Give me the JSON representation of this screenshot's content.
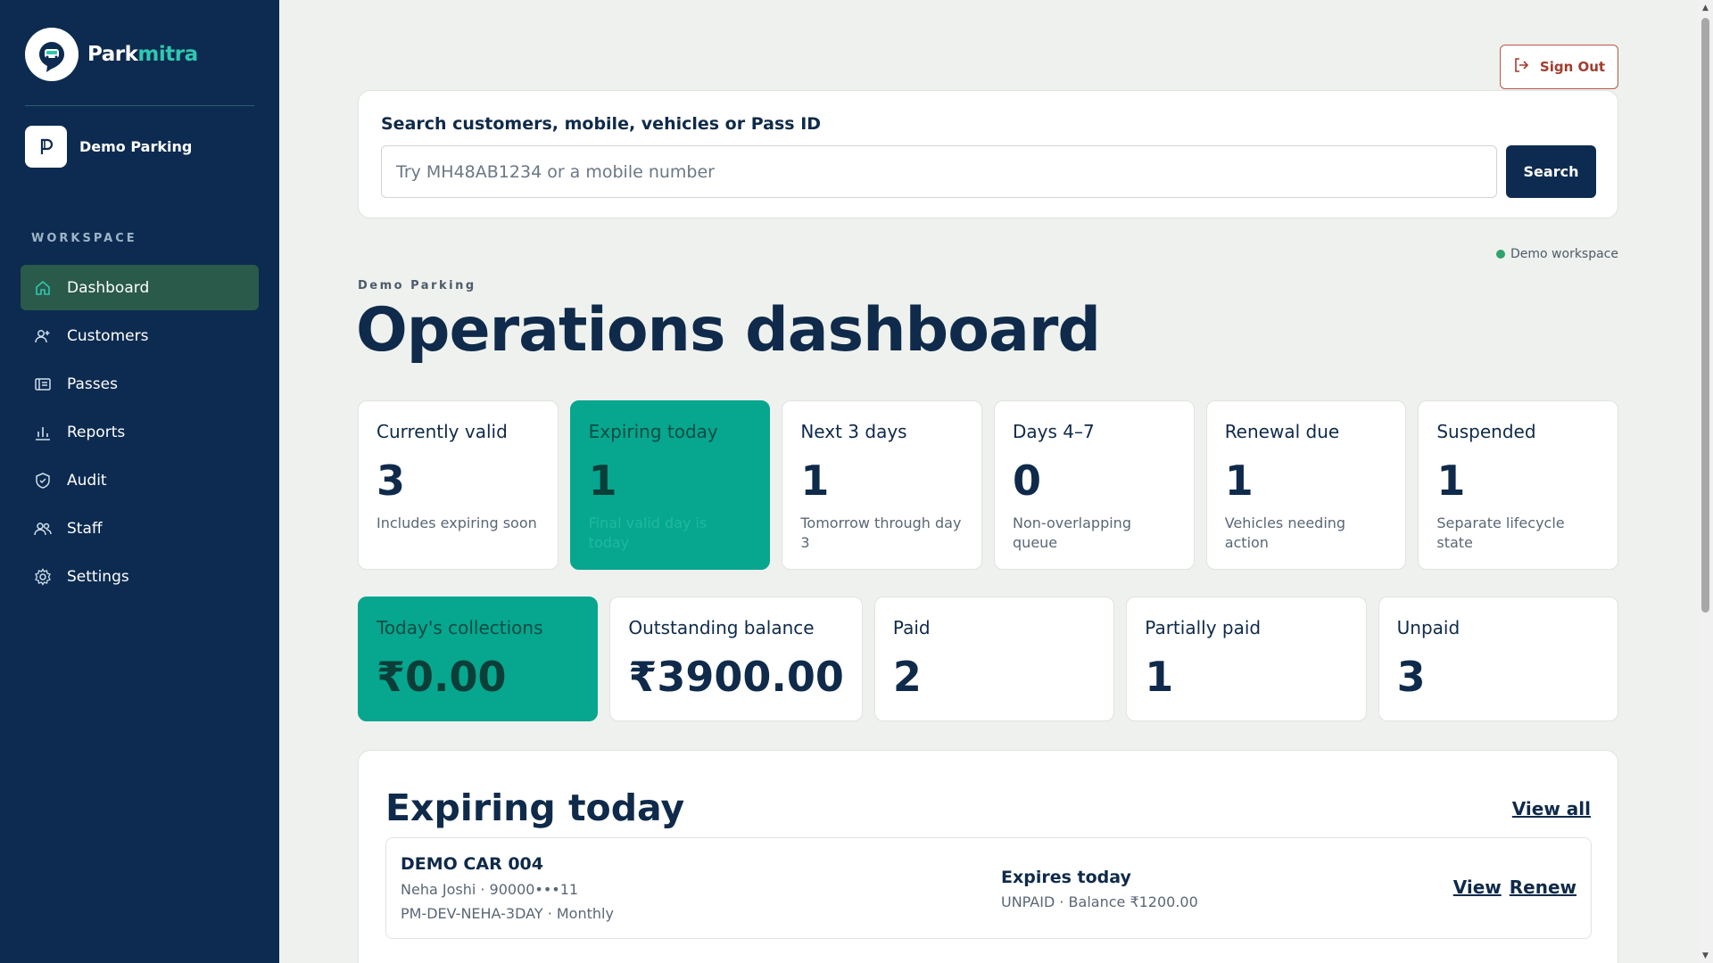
{
  "brand": {
    "name_part1": "Park",
    "name_part2": "mitra"
  },
  "sidebar": {
    "org_name": "Demo Parking",
    "section_label": "WORKSPACE",
    "items": [
      {
        "label": "Dashboard",
        "icon": "home-icon",
        "active": true
      },
      {
        "label": "Customers",
        "icon": "user-plus-icon"
      },
      {
        "label": "Passes",
        "icon": "pass-card-icon"
      },
      {
        "label": "Reports",
        "icon": "bar-chart-icon"
      },
      {
        "label": "Audit",
        "icon": "shield-check-icon"
      },
      {
        "label": "Staff",
        "icon": "users-icon"
      },
      {
        "label": "Settings",
        "icon": "gear-icon"
      }
    ]
  },
  "header": {
    "sign_out_label": "Sign Out"
  },
  "search": {
    "title": "Search customers, mobile, vehicles or Pass ID",
    "placeholder": "Try MH48AB1234 or a mobile number",
    "button_label": "Search"
  },
  "workspace_badge": "Demo workspace",
  "page": {
    "eyebrow": "Demo Parking",
    "title": "Operations dashboard"
  },
  "stats": [
    {
      "label": "Currently valid",
      "value": "3",
      "sub": "Includes expiring soon"
    },
    {
      "label": "Expiring today",
      "value": "1",
      "sub": "Final valid day is today"
    },
    {
      "label": "Next 3 days",
      "value": "1",
      "sub": "Tomorrow through day 3"
    },
    {
      "label": "Days 4–7",
      "value": "0",
      "sub": "Non-overlapping queue"
    },
    {
      "label": "Renewal due",
      "value": "1",
      "sub": "Vehicles needing action"
    },
    {
      "label": "Suspended",
      "value": "1",
      "sub": "Separate lifecycle state"
    }
  ],
  "money": [
    {
      "label": "Today's collections",
      "value": "₹0.00"
    },
    {
      "label": "Outstanding balance",
      "value": "₹3900.00"
    },
    {
      "label": "Paid",
      "value": "2"
    },
    {
      "label": "Partially paid",
      "value": "1"
    },
    {
      "label": "Unpaid",
      "value": "3"
    }
  ],
  "expiring": {
    "title": "Expiring today",
    "view_all_label": "View all",
    "rows": [
      {
        "plate": "DEMO CAR 004",
        "customer": "Neha Joshi · 90000•••11",
        "pass": "PM-DEV-NEHA-3DAY · Monthly",
        "status": "Expires today",
        "balance": "UNPAID · Balance ₹1200.00",
        "view_label": "View",
        "renew_label": "Renew"
      }
    ]
  },
  "colors": {
    "sidebar": "#0d2b50",
    "accent": "#07a68e",
    "active_nav": "#2a5a4a",
    "danger": "#a13d2d"
  }
}
